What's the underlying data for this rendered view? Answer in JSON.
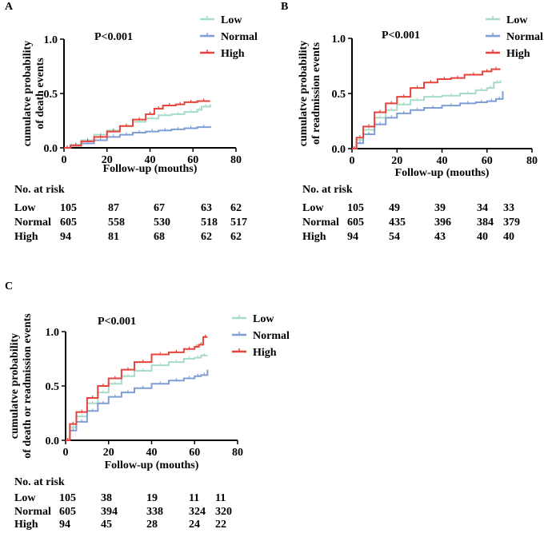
{
  "chart_data": [
    {
      "type": "line",
      "panel_label": "A",
      "title": "",
      "pvalue": "P<0.001",
      "xlabel": "Follow-up (mouths)",
      "ylabel_lines": [
        "cumulatve probability",
        "of death events"
      ],
      "xlim": [
        0,
        80
      ],
      "ylim": [
        0,
        1.0
      ],
      "x_ticks": [
        0,
        20,
        40,
        60,
        80
      ],
      "y_ticks": [
        0.0,
        0.5,
        1.0
      ],
      "y_tick_labels": [
        "0.0",
        "0.5",
        "1.0"
      ],
      "legend": [
        "Low",
        "Normal",
        "High"
      ],
      "legend_position": "top-right",
      "series": [
        {
          "name": "Low",
          "color": "#a8dcc8",
          "points": [
            [
              0,
              0
            ],
            [
              3,
              0.03
            ],
            [
              8,
              0.07
            ],
            [
              14,
              0.12
            ],
            [
              20,
              0.16
            ],
            [
              26,
              0.2
            ],
            [
              32,
              0.24
            ],
            [
              38,
              0.27
            ],
            [
              44,
              0.3
            ],
            [
              50,
              0.31
            ],
            [
              56,
              0.33
            ],
            [
              62,
              0.35
            ],
            [
              64,
              0.38
            ],
            [
              68,
              0.4
            ]
          ]
        },
        {
          "name": "Normal",
          "color": "#7f9ed6",
          "points": [
            [
              0,
              0
            ],
            [
              3,
              0.02
            ],
            [
              8,
              0.04
            ],
            [
              14,
              0.07
            ],
            [
              20,
              0.1
            ],
            [
              26,
              0.12
            ],
            [
              32,
              0.14
            ],
            [
              38,
              0.15
            ],
            [
              44,
              0.16
            ],
            [
              50,
              0.17
            ],
            [
              56,
              0.18
            ],
            [
              62,
              0.19
            ],
            [
              68,
              0.2
            ]
          ]
        },
        {
          "name": "High",
          "color": "#e8433d",
          "points": [
            [
              0,
              0
            ],
            [
              3,
              0.02
            ],
            [
              8,
              0.06
            ],
            [
              14,
              0.1
            ],
            [
              20,
              0.15
            ],
            [
              26,
              0.2
            ],
            [
              32,
              0.26
            ],
            [
              38,
              0.31
            ],
            [
              42,
              0.36
            ],
            [
              46,
              0.39
            ],
            [
              52,
              0.4
            ],
            [
              56,
              0.42
            ],
            [
              62,
              0.43
            ],
            [
              68,
              0.43
            ]
          ]
        }
      ]
    },
    {
      "type": "line",
      "panel_label": "B",
      "title": "",
      "pvalue": "P<0.001",
      "xlabel": "Follow-up (mouths)",
      "ylabel_lines": [
        "cumulatve probability",
        "of readmission events"
      ],
      "xlim": [
        0,
        80
      ],
      "ylim": [
        0,
        1.0
      ],
      "x_ticks": [
        0,
        20,
        40,
        60,
        80
      ],
      "y_ticks": [
        0.0,
        0.5,
        1.0
      ],
      "y_tick_labels": [
        "0.0",
        "0.5",
        "1.0"
      ],
      "legend": [
        "Low",
        "Normal",
        "High"
      ],
      "legend_position": "top-right",
      "series": [
        {
          "name": "Low",
          "color": "#a8dcc8",
          "points": [
            [
              0,
              0
            ],
            [
              2,
              0.08
            ],
            [
              5,
              0.17
            ],
            [
              10,
              0.28
            ],
            [
              15,
              0.35
            ],
            [
              20,
              0.4
            ],
            [
              26,
              0.44
            ],
            [
              32,
              0.47
            ],
            [
              40,
              0.48
            ],
            [
              48,
              0.5
            ],
            [
              55,
              0.53
            ],
            [
              60,
              0.55
            ],
            [
              63,
              0.6
            ],
            [
              66,
              0.62
            ]
          ]
        },
        {
          "name": "Normal",
          "color": "#7f9ed6",
          "points": [
            [
              0,
              0
            ],
            [
              2,
              0.05
            ],
            [
              5,
              0.13
            ],
            [
              10,
              0.22
            ],
            [
              15,
              0.28
            ],
            [
              20,
              0.32
            ],
            [
              26,
              0.35
            ],
            [
              32,
              0.37
            ],
            [
              40,
              0.39
            ],
            [
              48,
              0.41
            ],
            [
              55,
              0.42
            ],
            [
              60,
              0.43
            ],
            [
              64,
              0.45
            ],
            [
              67,
              0.52
            ]
          ]
        },
        {
          "name": "High",
          "color": "#e8433d",
          "points": [
            [
              0,
              0
            ],
            [
              2,
              0.1
            ],
            [
              5,
              0.2
            ],
            [
              10,
              0.33
            ],
            [
              15,
              0.41
            ],
            [
              20,
              0.47
            ],
            [
              26,
              0.55
            ],
            [
              32,
              0.6
            ],
            [
              38,
              0.63
            ],
            [
              44,
              0.64
            ],
            [
              50,
              0.67
            ],
            [
              58,
              0.7
            ],
            [
              62,
              0.72
            ],
            [
              66,
              0.72
            ]
          ]
        }
      ]
    },
    {
      "type": "line",
      "panel_label": "C",
      "title": "",
      "pvalue": "P<0.001",
      "xlabel": "Follow-up (mouths)",
      "ylabel_lines": [
        "cumulatve probability",
        "of death or readmission events"
      ],
      "xlim": [
        0,
        80
      ],
      "ylim": [
        0,
        1.0
      ],
      "x_ticks": [
        0,
        20,
        40,
        60,
        80
      ],
      "y_ticks": [
        0.0,
        0.5,
        1.0
      ],
      "y_tick_labels": [
        "0.0",
        "0.5",
        "1.0"
      ],
      "legend": [
        "Low",
        "Normal",
        "High"
      ],
      "legend_position": "top-right",
      "series": [
        {
          "name": "Low",
          "color": "#a8dcc8",
          "points": [
            [
              0,
              0
            ],
            [
              2,
              0.12
            ],
            [
              5,
              0.22
            ],
            [
              10,
              0.34
            ],
            [
              15,
              0.44
            ],
            [
              20,
              0.52
            ],
            [
              26,
              0.59
            ],
            [
              32,
              0.64
            ],
            [
              40,
              0.69
            ],
            [
              48,
              0.72
            ],
            [
              55,
              0.75
            ],
            [
              60,
              0.76
            ],
            [
              63,
              0.78
            ],
            [
              66,
              0.78
            ]
          ]
        },
        {
          "name": "Normal",
          "color": "#7f9ed6",
          "points": [
            [
              0,
              0
            ],
            [
              2,
              0.09
            ],
            [
              5,
              0.17
            ],
            [
              10,
              0.27
            ],
            [
              15,
              0.34
            ],
            [
              20,
              0.4
            ],
            [
              26,
              0.44
            ],
            [
              32,
              0.48
            ],
            [
              40,
              0.52
            ],
            [
              48,
              0.55
            ],
            [
              55,
              0.57
            ],
            [
              60,
              0.59
            ],
            [
              63,
              0.6
            ],
            [
              66,
              0.65
            ]
          ]
        },
        {
          "name": "High",
          "color": "#e8433d",
          "points": [
            [
              0,
              0
            ],
            [
              2,
              0.15
            ],
            [
              5,
              0.26
            ],
            [
              10,
              0.39
            ],
            [
              15,
              0.5
            ],
            [
              20,
              0.57
            ],
            [
              26,
              0.65
            ],
            [
              32,
              0.72
            ],
            [
              40,
              0.79
            ],
            [
              48,
              0.81
            ],
            [
              55,
              0.84
            ],
            [
              60,
              0.86
            ],
            [
              62,
              0.88
            ],
            [
              64,
              0.95
            ],
            [
              66,
              0.95
            ]
          ]
        }
      ]
    }
  ],
  "risk_tables": [
    {
      "title": "No. at risk",
      "rows": [
        {
          "label": "Low",
          "values": [
            "105",
            "87",
            "67",
            "63",
            "62"
          ]
        },
        {
          "label": "Normal",
          "values": [
            "605",
            "558",
            "530",
            "518",
            "517"
          ]
        },
        {
          "label": "High",
          "values": [
            "94",
            "81",
            "68",
            "62",
            "62"
          ]
        }
      ]
    },
    {
      "title": "No. at risk",
      "rows": [
        {
          "label": "Low",
          "values": [
            "105",
            "49",
            "39",
            "34",
            "33"
          ]
        },
        {
          "label": "Normal",
          "values": [
            "605",
            "435",
            "396",
            "384",
            "379"
          ]
        },
        {
          "label": "High",
          "values": [
            "94",
            "54",
            "43",
            "40",
            "40"
          ]
        }
      ]
    },
    {
      "title": "No. at risk",
      "rows": [
        {
          "label": "Low",
          "values": [
            "105",
            "38",
            "19",
            "11",
            "11"
          ]
        },
        {
          "label": "Normal",
          "values": [
            "605",
            "394",
            "338",
            "324",
            "320"
          ]
        },
        {
          "label": "High",
          "values": [
            "94",
            "45",
            "28",
            "24",
            "22"
          ]
        }
      ]
    }
  ]
}
